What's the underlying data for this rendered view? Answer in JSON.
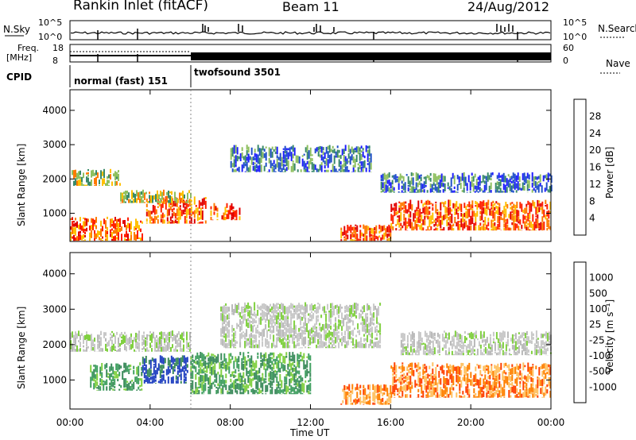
{
  "header": {
    "title": "Rankin Inlet (fitACF)",
    "beam": "Beam 11",
    "date": "24/Aug/2012"
  },
  "status_panels": {
    "nsky_label": "N.Sky",
    "nsky_ticks": [
      "10^5",
      "10^0"
    ],
    "nsearch_label": "N.Search",
    "nsearch_ticks": [
      "10^5",
      "10^0"
    ],
    "freq_label": "Freq.",
    "freq_unit": "[MHz]",
    "freq_ticks": [
      "18",
      "8"
    ],
    "nave_label": "Nave",
    "nave_ticks": [
      "60",
      "0"
    ],
    "cpid_label": "CPID",
    "cpid_modes": [
      "normal (fast) 151",
      "twofsound 3501"
    ]
  },
  "chart_data": [
    {
      "type": "heatmap",
      "panel": "power",
      "ylabel": "Slant Range [km]",
      "xlabel": "",
      "x_ticks": [
        "00:00",
        "04:00",
        "08:00",
        "12:00",
        "16:00",
        "20:00",
        "00:00"
      ],
      "y_ticks": [
        1000,
        2000,
        3000,
        4000
      ],
      "xlim_hours": [
        0,
        24
      ],
      "ylim_km": [
        180,
        4600
      ],
      "colorbar": {
        "label": "Power [dB]",
        "ticks": [
          4,
          8,
          12,
          16,
          20,
          24,
          28
        ],
        "colors": [
          "#1f1fff",
          "#2050c8",
          "#3a8a6a",
          "#8fc060",
          "#ffc000",
          "#ff7a00",
          "#ff2000",
          "#e00000"
        ]
      },
      "regions": [
        {
          "h0": 0.0,
          "h1": 3.6,
          "r0": 200,
          "r1": 900,
          "level": "high"
        },
        {
          "h0": 3.8,
          "h1": 6.8,
          "r0": 700,
          "r1": 1500,
          "level": "high"
        },
        {
          "h0": 7.0,
          "h1": 8.5,
          "r0": 800,
          "r1": 1300,
          "level": "high"
        },
        {
          "h0": 0.0,
          "h1": 2.5,
          "r0": 1800,
          "r1": 2300,
          "level": "mid"
        },
        {
          "h0": 2.5,
          "h1": 6.0,
          "r0": 1300,
          "r1": 1700,
          "level": "mid"
        },
        {
          "h0": 8.0,
          "h1": 15.0,
          "r0": 2200,
          "r1": 3000,
          "level": "low"
        },
        {
          "h0": 13.5,
          "h1": 16.0,
          "r0": 200,
          "r1": 700,
          "level": "high"
        },
        {
          "h0": 16.0,
          "h1": 24.0,
          "r0": 500,
          "r1": 1400,
          "level": "high"
        },
        {
          "h0": 15.5,
          "h1": 24.0,
          "r0": 1600,
          "r1": 2200,
          "level": "low"
        }
      ]
    },
    {
      "type": "heatmap",
      "panel": "velocity",
      "ylabel": "Slant Range [km]",
      "xlabel": "Time UT",
      "x_ticks": [
        "00:00",
        "04:00",
        "08:00",
        "12:00",
        "16:00",
        "20:00",
        "00:00"
      ],
      "y_ticks": [
        1000,
        2000,
        3000,
        4000
      ],
      "xlim_hours": [
        0,
        24
      ],
      "ylim_km": [
        180,
        4600
      ],
      "colorbar": {
        "label": "Velocity [m s⁻¹]",
        "ticks": [
          1000,
          500,
          100,
          25,
          -25,
          -100,
          -500,
          -1000
        ],
        "colors": [
          "#2040c0",
          "#3a8a5a",
          "#40a060",
          "#80d040",
          "#c8c8c8",
          "#ffc060",
          "#ff8000",
          "#ff4000",
          "#e00000"
        ]
      },
      "regions": [
        {
          "h0": 3.6,
          "h1": 5.9,
          "r0": 900,
          "r1": 1700,
          "level": "v_pos_high"
        },
        {
          "h0": 1.0,
          "h1": 3.6,
          "r0": 700,
          "r1": 1500,
          "level": "v_pos_mid"
        },
        {
          "h0": 6.0,
          "h1": 12.0,
          "r0": 600,
          "r1": 1800,
          "level": "v_pos_mid"
        },
        {
          "h0": 0.0,
          "h1": 6.0,
          "r0": 1800,
          "r1": 2400,
          "level": "v_zero"
        },
        {
          "h0": 7.5,
          "h1": 15.5,
          "r0": 1900,
          "r1": 3200,
          "level": "v_zero"
        },
        {
          "h0": 13.5,
          "h1": 16.0,
          "r0": 300,
          "r1": 900,
          "level": "v_neg"
        },
        {
          "h0": 16.0,
          "h1": 24.0,
          "r0": 500,
          "r1": 1500,
          "level": "v_neg"
        },
        {
          "h0": 16.5,
          "h1": 24.0,
          "r0": 1700,
          "r1": 2400,
          "level": "v_zero"
        }
      ]
    }
  ]
}
